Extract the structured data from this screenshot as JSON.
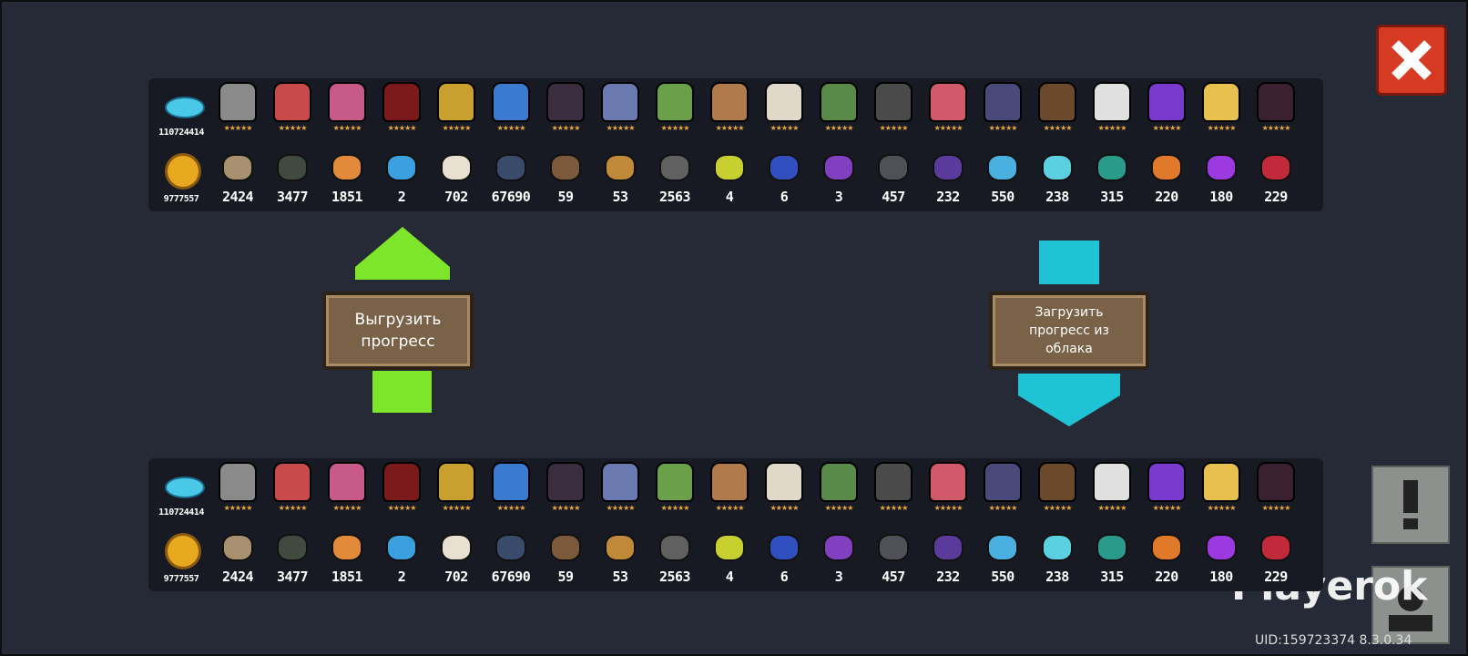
{
  "panels": [
    {
      "gems": 110724414,
      "coins": 9777557,
      "resources": [
        2424,
        3477,
        1851,
        2,
        702,
        67690,
        59,
        53,
        2563,
        4,
        6,
        3,
        457,
        232,
        550,
        238,
        315,
        220,
        180,
        229
      ]
    },
    {
      "gems": 110724414,
      "coins": 9777557,
      "resources": [
        2424,
        3477,
        1851,
        2,
        702,
        67690,
        59,
        53,
        2563,
        4,
        6,
        3,
        457,
        232,
        550,
        238,
        315,
        220,
        180,
        229
      ]
    }
  ],
  "buttons": {
    "upload": "Выгрузить прогресс",
    "download": "Загрузить прогресс из облака"
  },
  "watermark": "Playerok",
  "uid": "UID:159723374 8.3.0.34"
}
